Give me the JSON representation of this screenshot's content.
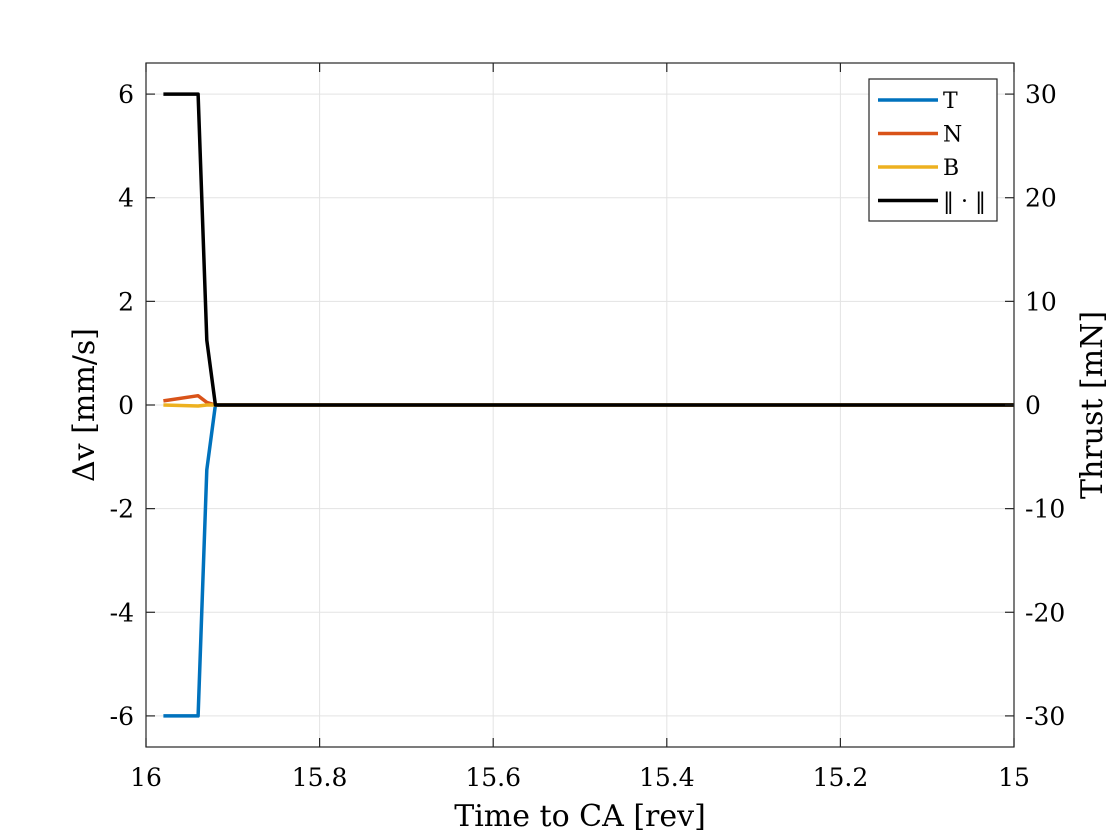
{
  "chart_data": {
    "type": "line",
    "xlabel": "Time to CA [rev]",
    "ylabel": "Δv [mm/s]",
    "y2label": "Thrust [mN]",
    "xlim": [
      16,
      15
    ],
    "x_reversed": true,
    "ylim": [
      -6.6,
      6.6
    ],
    "y2lim": [
      -33,
      33
    ],
    "xticks": [
      16,
      15.8,
      15.6,
      15.4,
      15.2,
      15
    ],
    "xtick_labels": [
      "16",
      "15.8",
      "15.6",
      "15.4",
      "15.2",
      "15"
    ],
    "yticks": [
      -6,
      -4,
      -2,
      0,
      2,
      4,
      6
    ],
    "ytick_labels": [
      "-6",
      "-4",
      "-2",
      "0",
      "2",
      "4",
      "6"
    ],
    "y2ticks": [
      -30,
      -20,
      -10,
      0,
      10,
      20,
      30
    ],
    "y2tick_labels": [
      "-30",
      "-20",
      "-10",
      "0",
      "10",
      "20",
      "30"
    ],
    "grid": true,
    "legend_position": "top-right",
    "series": [
      {
        "name": "T",
        "color": "#0072BD",
        "x": [
          15.98,
          15.94,
          15.93,
          15.92,
          15.0
        ],
        "y": [
          -6.0,
          -6.0,
          -1.25,
          0.0,
          0.0
        ]
      },
      {
        "name": "N",
        "color": "#D95319",
        "x": [
          15.98,
          15.94,
          15.93,
          15.92,
          15.0
        ],
        "y": [
          0.08,
          0.18,
          0.05,
          0.0,
          0.0
        ]
      },
      {
        "name": "B",
        "color": "#EDB120",
        "x": [
          15.98,
          15.94,
          15.93,
          15.92,
          15.0
        ],
        "y": [
          0.0,
          -0.02,
          0.0,
          0.0,
          0.0
        ]
      },
      {
        "name": "‖ · ‖",
        "color": "#000000",
        "x": [
          15.98,
          15.94,
          15.93,
          15.92,
          15.0
        ],
        "y": [
          6.0,
          6.0,
          1.25,
          0.0,
          0.0
        ]
      }
    ]
  }
}
